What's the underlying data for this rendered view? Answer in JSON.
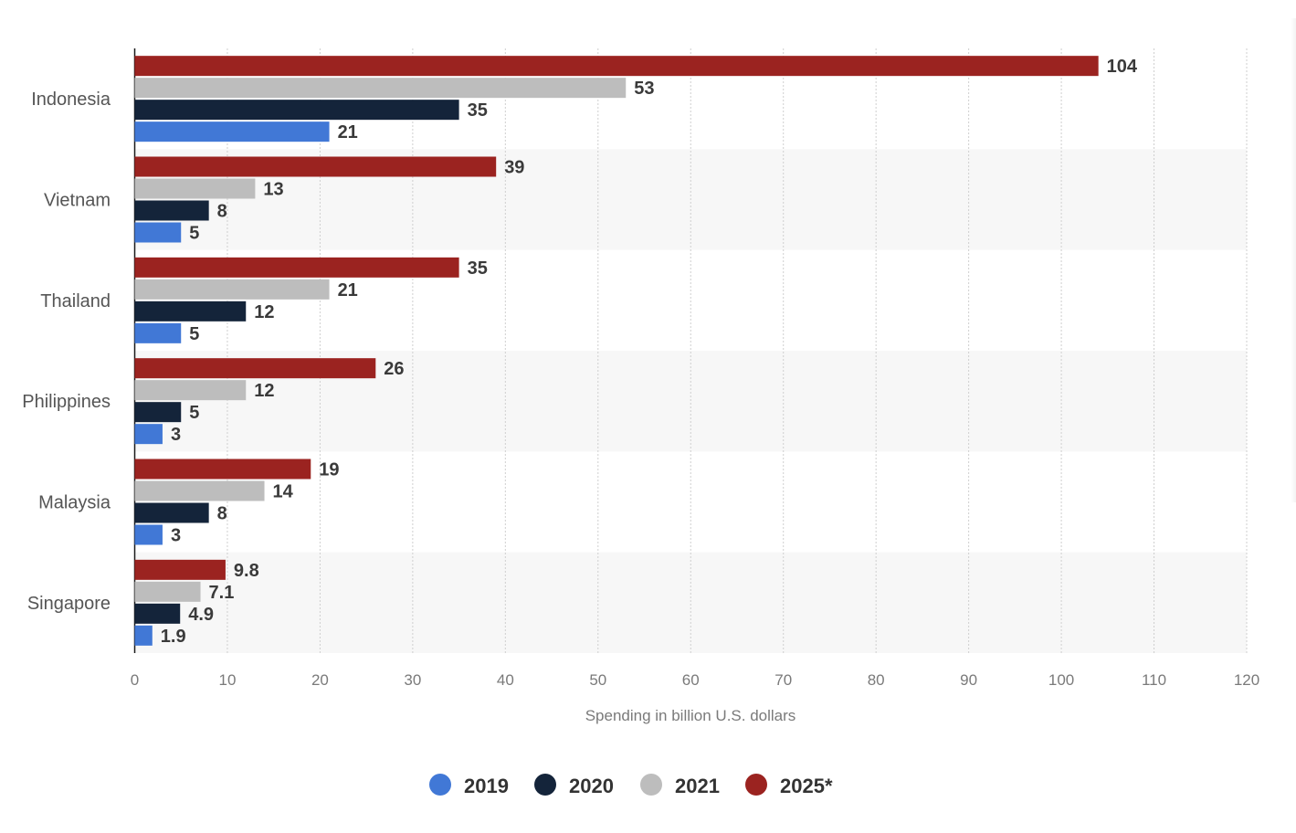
{
  "chart_data": {
    "type": "bar",
    "orientation": "horizontal",
    "categories": [
      "Indonesia",
      "Vietnam",
      "Thailand",
      "Philippines",
      "Malaysia",
      "Singapore"
    ],
    "series": [
      {
        "name": "2025*",
        "color": "#9b2320",
        "values": [
          104,
          39,
          35,
          26,
          19,
          9.8
        ]
      },
      {
        "name": "2021",
        "color": "#bdbdbd",
        "values": [
          53,
          13,
          21,
          12,
          14,
          7.1
        ]
      },
      {
        "name": "2020",
        "color": "#14243a",
        "values": [
          35,
          8,
          12,
          5,
          8,
          4.9
        ]
      },
      {
        "name": "2019",
        "color": "#4178d6",
        "values": [
          21,
          5,
          5,
          3,
          3,
          1.9
        ]
      }
    ],
    "legend_order": [
      "2019",
      "2020",
      "2021",
      "2025*"
    ],
    "xlabel": "Spending in billion U.S. dollars",
    "ylabel": "",
    "xlim": [
      0,
      120
    ],
    "xticks": [
      0,
      10,
      20,
      30,
      40,
      50,
      60,
      70,
      80,
      90,
      100,
      110,
      120
    ],
    "grid": true,
    "legend_position": "bottom-center",
    "data_labels": true
  }
}
